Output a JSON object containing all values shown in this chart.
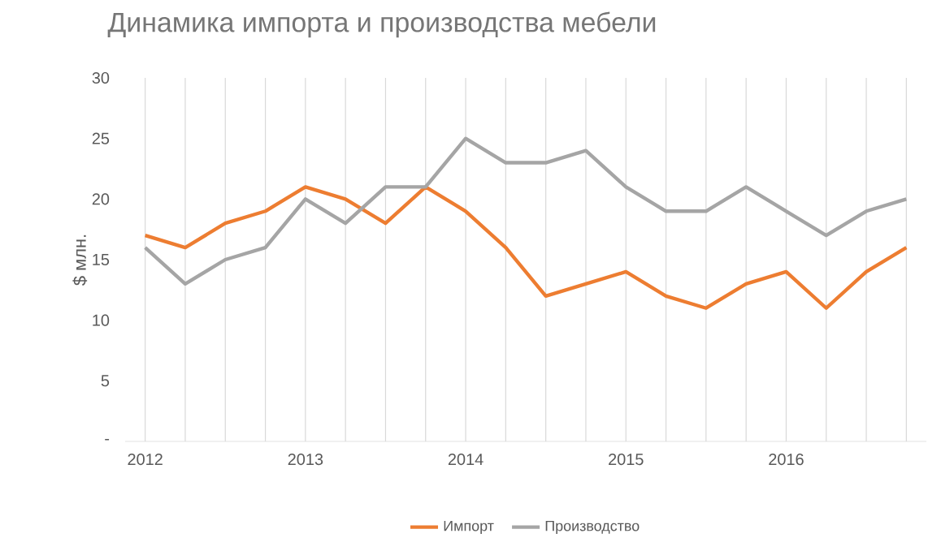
{
  "chart_data": {
    "type": "line",
    "title": "Динамика импорта и производства мебели",
    "ylabel": "$ млн.",
    "categories": [
      "2012",
      null,
      null,
      null,
      "2013",
      null,
      null,
      null,
      "2014",
      null,
      null,
      null,
      "2015",
      null,
      null,
      null,
      "2016",
      null,
      null,
      null
    ],
    "series": [
      {
        "name": "Импорт",
        "color": "#ed7d31",
        "values": [
          17,
          16,
          18,
          19,
          21,
          20,
          18,
          21,
          19,
          16,
          12,
          13,
          14,
          12,
          11,
          13,
          14,
          11,
          14,
          16
        ]
      },
      {
        "name": "Производство",
        "color": "#a5a5a5",
        "values": [
          16,
          13,
          15,
          16,
          20,
          18,
          21,
          21,
          25,
          23,
          23,
          24,
          21,
          19,
          19,
          21,
          19,
          17,
          19,
          20
        ]
      }
    ],
    "ylim": [
      0,
      30
    ],
    "yticks": [
      {
        "value": 0,
        "label": "-"
      },
      5,
      10,
      15,
      20,
      25,
      30
    ],
    "grid": "x",
    "legend": "bottom"
  }
}
